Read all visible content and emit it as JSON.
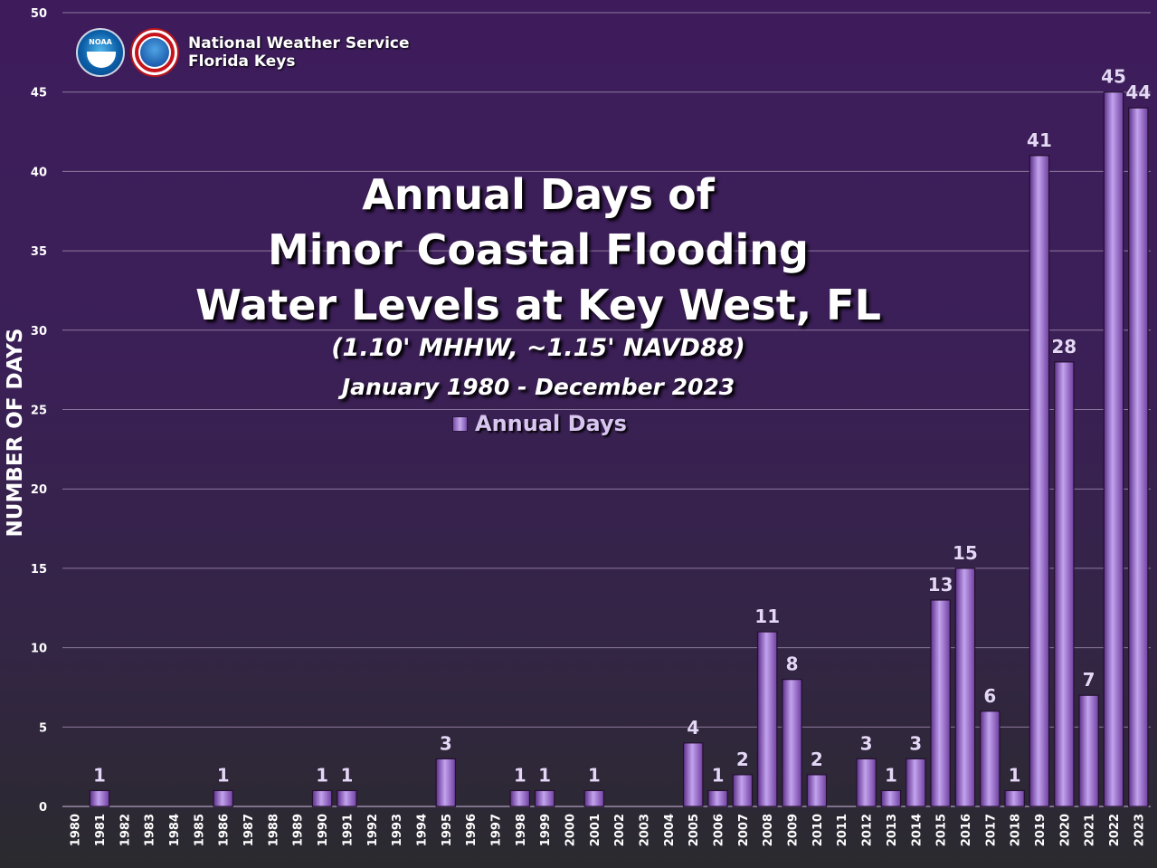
{
  "header": {
    "title_lines": [
      "Annual Days of",
      "Minor Coastal Flooding",
      "Water Levels at Key West, FL"
    ],
    "subtitle": "(1.10' MHHW, ~1.15' NAVD88)",
    "date_range": "January 1980 - December 2023",
    "legend_label": "Annual Days"
  },
  "branding": {
    "org_line1": "National Weather Service",
    "org_line2": "Florida Keys",
    "noaa_logo_text": "NOAA",
    "icons": [
      "noaa-logo-icon",
      "nws-logo-icon"
    ]
  },
  "colors": {
    "bar_light": "#c3a3ee",
    "bar_mid": "#9a6bd2",
    "bar_dark": "#6e3f9f",
    "bar_edge": "#24102f",
    "grid": "#8e7aa0",
    "label": "#ffffff",
    "data_label": "#e4d8f6"
  },
  "chart_data": {
    "type": "bar",
    "title": "Annual Days of Minor Coastal Flooding Water Levels at Key West, FL",
    "subtitle": "(1.10' MHHW, ~1.15' NAVD88)",
    "xlabel": "",
    "ylabel": "NUMBER OF DAYS",
    "ylim": [
      0,
      50
    ],
    "yticks": [
      0,
      5,
      10,
      15,
      20,
      25,
      30,
      35,
      40,
      45,
      50
    ],
    "grid": true,
    "legend_placement": "top-center",
    "categories": [
      "1980",
      "1981",
      "1982",
      "1983",
      "1984",
      "1985",
      "1986",
      "1987",
      "1988",
      "1989",
      "1990",
      "1991",
      "1992",
      "1993",
      "1994",
      "1995",
      "1996",
      "1997",
      "1998",
      "1999",
      "2000",
      "2001",
      "2002",
      "2003",
      "2004",
      "2005",
      "2006",
      "2007",
      "2008",
      "2009",
      "2010",
      "2011",
      "2012",
      "2013",
      "2014",
      "2015",
      "2016",
      "2017",
      "2018",
      "2019",
      "2020",
      "2021",
      "2022",
      "2023"
    ],
    "series": [
      {
        "name": "Annual Days",
        "values": [
          0,
          1,
          0,
          0,
          0,
          0,
          1,
          0,
          0,
          0,
          1,
          1,
          0,
          0,
          0,
          3,
          0,
          0,
          1,
          1,
          0,
          1,
          0,
          0,
          0,
          4,
          1,
          2,
          11,
          8,
          2,
          0,
          3,
          1,
          3,
          13,
          15,
          6,
          1,
          41,
          28,
          7,
          45,
          44
        ]
      }
    ]
  }
}
